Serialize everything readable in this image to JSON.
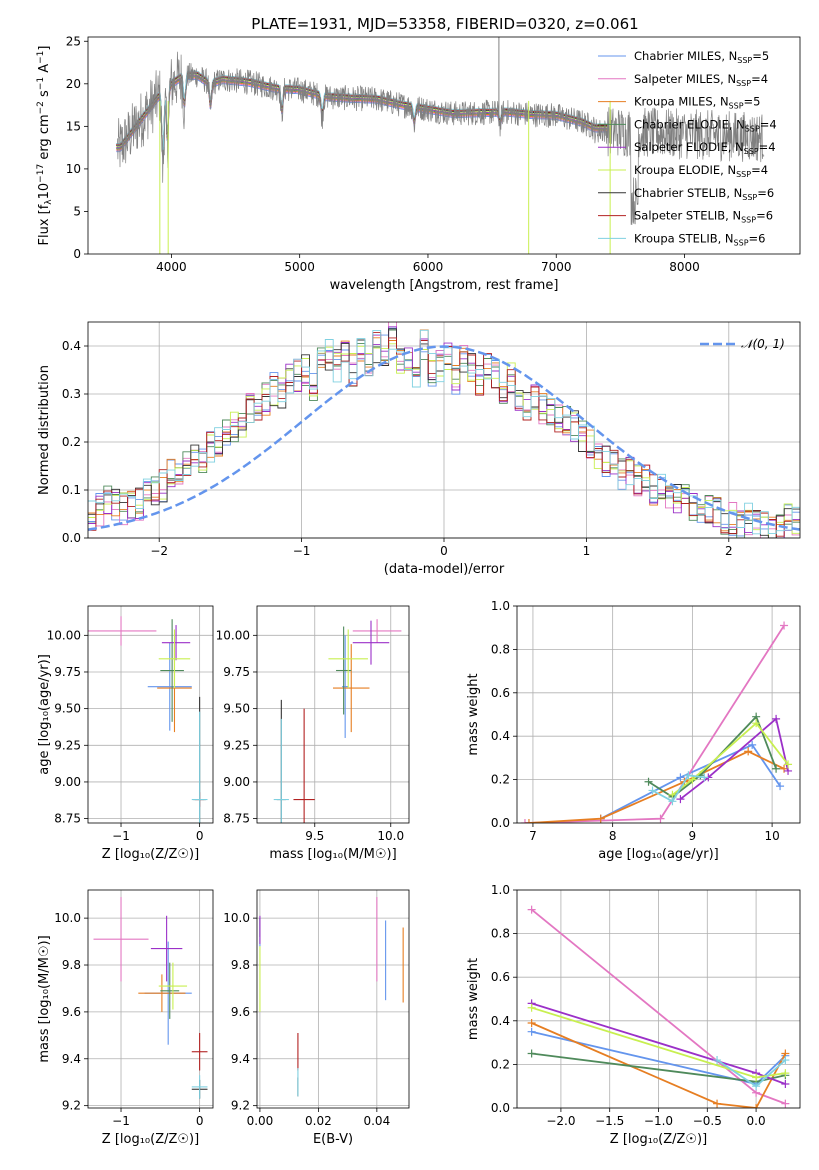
{
  "figure": {
    "title": "PLATE=1931, MJD=53358, FIBERID=0320, z=0.061"
  },
  "series_legend": [
    {
      "label": "Chabrier MILES, N",
      "sub": "SSP",
      "suffix": "=5",
      "color": "#6495ed"
    },
    {
      "label": "Salpeter MILES, N",
      "sub": "SSP",
      "suffix": "=4",
      "color": "#e377c2"
    },
    {
      "label": "Kroupa MILES, N",
      "sub": "SSP",
      "suffix": "=5",
      "color": "#e67e22"
    },
    {
      "label": "Chabrier ELODIE, N",
      "sub": "SSP",
      "suffix": "=4",
      "color": "#4f8a5b"
    },
    {
      "label": "Salpeter ELODIE, N",
      "sub": "SSP",
      "suffix": "=4",
      "color": "#9b30c8"
    },
    {
      "label": "Kroupa ELODIE, N",
      "sub": "SSP",
      "suffix": "=4",
      "color": "#c8ef50"
    },
    {
      "label": "Chabrier STELIB, N",
      "sub": "SSP",
      "suffix": "=6",
      "color": "#333333"
    },
    {
      "label": "Salpeter STELIB, N",
      "sub": "SSP",
      "suffix": "=6",
      "color": "#b22222"
    },
    {
      "label": "Kroupa STELIB, N",
      "sub": "SSP",
      "suffix": "=6",
      "color": "#7fd0e0"
    }
  ],
  "chart_data": [
    {
      "id": "spectrum",
      "type": "line",
      "xlabel": "wavelength [Angstrom, rest frame]",
      "ylabel_parts": {
        "a": "Flux [f",
        "sub": "λ",
        "b": "10",
        "sup1": "−17",
        "c": " erg cm",
        "sup2": "−2",
        "d": " s",
        "sup3": "−1",
        "e": " A",
        "sup4": "−1",
        "f": "]"
      },
      "xlim": [
        3350,
        8900
      ],
      "ylim": [
        0,
        25.5
      ],
      "xticks": [
        4000,
        5000,
        6000,
        7000,
        8000
      ],
      "yticks": [
        0,
        5,
        10,
        15,
        20,
        25
      ],
      "grid": false,
      "legend_position": "top-right",
      "data_color": "#808080",
      "continuum": {
        "x": [
          3600,
          3700,
          3800,
          3900,
          4000,
          4100,
          4200,
          4300,
          4400,
          4600,
          4800,
          5000,
          5200,
          5400,
          5600,
          5800,
          6000,
          6200,
          6400,
          6600,
          6800,
          7000,
          7200,
          7300
        ],
        "y": [
          12.5,
          14.5,
          16.5,
          18.5,
          20.0,
          21.0,
          21.0,
          20.0,
          20.5,
          20.2,
          19.5,
          19.3,
          18.5,
          18.3,
          18.2,
          17.5,
          17.0,
          16.5,
          16.6,
          16.7,
          16.4,
          16.3,
          15.5,
          14.8
        ]
      },
      "absorption_lines": [
        {
          "x": 3934,
          "depth": 9.0
        },
        {
          "x": 3969,
          "depth": 7.0
        },
        {
          "x": 4102,
          "depth": 4.0
        },
        {
          "x": 4305,
          "depth": 3.0
        },
        {
          "x": 4861,
          "depth": 3.0
        },
        {
          "x": 5175,
          "depth": 2.5
        },
        {
          "x": 5893,
          "depth": 2.0
        },
        {
          "x": 6563,
          "depth": 1.5
        }
      ]
    },
    {
      "id": "residuals",
      "type": "histogram",
      "xlabel": "(data-model)/error",
      "ylabel": "Normed distribution",
      "xlim": [
        -2.5,
        2.5
      ],
      "ylim": [
        0,
        0.45
      ],
      "xticks": [
        -2,
        -1,
        0,
        1,
        2
      ],
      "yticks": [
        0.0,
        0.1,
        0.2,
        0.3,
        0.4
      ],
      "grid": true,
      "legend_position": "top-right",
      "gaussian_label": "𝒩(0, 1)",
      "gaussian_color": "#6495ed",
      "bin_width": 0.1,
      "reference_counts": [
        0.05,
        0.06,
        0.08,
        0.07,
        0.06,
        0.07,
        0.07,
        0.09,
        0.1,
        0.11,
        0.14,
        0.12,
        0.15,
        0.16,
        0.17,
        0.19,
        0.2,
        0.22,
        0.23,
        0.24,
        0.27,
        0.26,
        0.29,
        0.31,
        0.3,
        0.33,
        0.34,
        0.35,
        0.32,
        0.37,
        0.38,
        0.36,
        0.38,
        0.35,
        0.39,
        0.37,
        0.4,
        0.39,
        0.42,
        0.36,
        0.38,
        0.34,
        0.4,
        0.35,
        0.36,
        0.38,
        0.33,
        0.37,
        0.36,
        0.33,
        0.35,
        0.34,
        0.31,
        0.33,
        0.3,
        0.28,
        0.3,
        0.27,
        0.26,
        0.25,
        0.24,
        0.23,
        0.21,
        0.2,
        0.18,
        0.16,
        0.15,
        0.13,
        0.14,
        0.12,
        0.12,
        0.1,
        0.11,
        0.09,
        0.08,
        0.08,
        0.07,
        0.06,
        0.06,
        0.05,
        0.04,
        0.04,
        0.03,
        0.04,
        0.03,
        0.03,
        0.02,
        0.03,
        0.04,
        0.03
      ]
    },
    {
      "id": "age-vs-z",
      "type": "scatter",
      "xlabel": "Z [log₁₀(Z/Z☉)]",
      "ylabel": "age  [log₁₀(age/yr)]",
      "xlim": [
        -1.42,
        0.17
      ],
      "ylim": [
        8.72,
        10.2
      ],
      "xticks": [
        -1,
        0
      ],
      "yticks": [
        8.75,
        9.0,
        9.25,
        9.5,
        9.75,
        10.0
      ],
      "grid": true,
      "points": [
        {
          "series": 0,
          "x": -0.38,
          "y": 9.65,
          "xerr": 0.28,
          "yerr": 0.3
        },
        {
          "series": 1,
          "x": -1.0,
          "y": 10.03,
          "xerr": 0.45,
          "yerr": 0.1
        },
        {
          "series": 2,
          "x": -0.32,
          "y": 9.64,
          "xerr": 0.22,
          "yerr": 0.3
        },
        {
          "series": 3,
          "x": -0.35,
          "y": 9.76,
          "xerr": 0.15,
          "yerr": 0.35
        },
        {
          "series": 4,
          "x": -0.3,
          "y": 9.95,
          "xerr": 0.18,
          "yerr": 0.12
        },
        {
          "series": 5,
          "x": -0.32,
          "y": 9.84,
          "xerr": 0.2,
          "yerr": 0.2
        },
        {
          "series": 6,
          "x": 0.0,
          "y": 8.88,
          "xerr": 0.08,
          "yerr": 0.7
        },
        {
          "series": 7,
          "x": 0.0,
          "y": 8.88,
          "xerr": 0.06,
          "yerr": 0.05
        },
        {
          "series": 8,
          "x": 0.0,
          "y": 8.88,
          "xerr": 0.1,
          "yerr": 0.6
        }
      ]
    },
    {
      "id": "age-vs-mass",
      "type": "scatter",
      "xlabel": "mass [log₁₀(M/M☉)]",
      "ylabel": "",
      "xlim": [
        9.12,
        10.12
      ],
      "ylim": [
        8.72,
        10.2
      ],
      "xticks": [
        9.5,
        10.0
      ],
      "yticks": [
        8.75,
        9.0,
        9.25,
        9.5,
        9.75,
        10.0
      ],
      "grid": true,
      "points": [
        {
          "series": 0,
          "x": 9.7,
          "y": 9.65,
          "xerr": 0.02,
          "yerr": 0.35
        },
        {
          "series": 1,
          "x": 9.91,
          "y": 10.03,
          "xerr": 0.16,
          "yerr": 0.08
        },
        {
          "series": 2,
          "x": 9.74,
          "y": 9.64,
          "xerr": 0.12,
          "yerr": 0.3
        },
        {
          "series": 3,
          "x": 9.69,
          "y": 9.76,
          "xerr": 0.05,
          "yerr": 0.3
        },
        {
          "series": 4,
          "x": 9.87,
          "y": 9.95,
          "xerr": 0.12,
          "yerr": 0.15
        },
        {
          "series": 5,
          "x": 9.72,
          "y": 9.84,
          "xerr": 0.13,
          "yerr": 0.2
        },
        {
          "series": 6,
          "x": 9.28,
          "y": 8.88,
          "xerr": 0.03,
          "yerr": 0.68
        },
        {
          "series": 7,
          "x": 9.43,
          "y": 8.88,
          "xerr": 0.07,
          "yerr": 0.62
        },
        {
          "series": 8,
          "x": 9.28,
          "y": 8.88,
          "xerr": 0.05,
          "yerr": 0.55
        }
      ]
    },
    {
      "id": "mass-weight-vs-age",
      "type": "line",
      "xlabel": "age  [log₁₀(age/yr)]",
      "ylabel": "mass weight",
      "xlim": [
        6.8,
        10.35
      ],
      "ylim": [
        0,
        1.0
      ],
      "xticks": [
        7,
        8,
        9,
        10
      ],
      "yticks": [
        0.0,
        0.2,
        0.4,
        0.6,
        0.8,
        1.0
      ],
      "grid": true,
      "series": [
        {
          "series": 0,
          "x": [
            7.85,
            8.85,
            9.75,
            10.1
          ],
          "y": [
            0.02,
            0.21,
            0.36,
            0.17
          ]
        },
        {
          "series": 1,
          "x": [
            6.9,
            8.6,
            10.15
          ],
          "y": [
            0.0,
            0.02,
            0.91
          ]
        },
        {
          "series": 2,
          "x": [
            6.95,
            7.85,
            8.9,
            9.7,
            10.15
          ],
          "y": [
            0.0,
            0.02,
            0.19,
            0.33,
            0.25
          ]
        },
        {
          "series": 3,
          "x": [
            8.45,
            8.75,
            9.1,
            9.8,
            10.05
          ],
          "y": [
            0.19,
            0.12,
            0.22,
            0.49,
            0.25
          ]
        },
        {
          "series": 4,
          "x": [
            8.85,
            9.2,
            10.05,
            10.2
          ],
          "y": [
            0.11,
            0.21,
            0.48,
            0.24
          ]
        },
        {
          "series": 5,
          "x": [
            8.75,
            9.0,
            9.8,
            10.2
          ],
          "y": [
            0.13,
            0.2,
            0.46,
            0.27
          ]
        },
        {
          "series": 8,
          "x": [
            8.5,
            8.75,
            8.95,
            9.15
          ],
          "y": [
            0.15,
            0.1,
            0.22,
            0.21
          ]
        }
      ]
    },
    {
      "id": "mass-vs-z",
      "type": "scatter",
      "xlabel": "Z [log₁₀(Z/Z☉)]",
      "ylabel": "mass [log₁₀(M/M☉)]",
      "xlim": [
        -1.42,
        0.17
      ],
      "ylim": [
        9.19,
        10.12
      ],
      "xticks": [
        -1,
        0
      ],
      "yticks": [
        9.2,
        9.4,
        9.6,
        9.8,
        10.0
      ],
      "grid": true,
      "points": [
        {
          "series": 0,
          "x": -0.4,
          "y": 9.68,
          "xerr": 0.3,
          "yerr": 0.22
        },
        {
          "series": 1,
          "x": -1.0,
          "y": 9.91,
          "xerr": 0.35,
          "yerr": 0.18
        },
        {
          "series": 2,
          "x": -0.48,
          "y": 9.68,
          "xerr": 0.3,
          "yerr": 0.08
        },
        {
          "series": 3,
          "x": -0.38,
          "y": 9.69,
          "xerr": 0.12,
          "yerr": 0.12
        },
        {
          "series": 4,
          "x": -0.42,
          "y": 9.87,
          "xerr": 0.2,
          "yerr": 0.14
        },
        {
          "series": 5,
          "x": -0.34,
          "y": 9.71,
          "xerr": 0.18,
          "yerr": 0.1
        },
        {
          "series": 6,
          "x": 0.0,
          "y": 9.27,
          "xerr": 0.1,
          "yerr": 0.04
        },
        {
          "series": 7,
          "x": 0.0,
          "y": 9.43,
          "xerr": 0.1,
          "yerr": 0.08
        },
        {
          "series": 8,
          "x": 0.0,
          "y": 9.28,
          "xerr": 0.1,
          "yerr": 0.05
        }
      ]
    },
    {
      "id": "mass-vs-ebv",
      "type": "scatter",
      "xlabel": "E(B-V)",
      "ylabel": "",
      "xlim": [
        -0.001,
        0.051
      ],
      "ylim": [
        9.19,
        10.12
      ],
      "xticks": [
        0.0,
        0.02,
        0.04
      ],
      "yticks": [
        9.2,
        9.4,
        9.6,
        9.8,
        10.0
      ],
      "grid": true,
      "points": [
        {
          "series": 0,
          "x": 0.0,
          "y": 9.94,
          "xerr": 0,
          "yerr": 0.06
        },
        {
          "series": 1,
          "x": 0.04,
          "y": 9.91,
          "xerr": 0,
          "yerr": 0.18
        },
        {
          "series": 2,
          "x": 0.049,
          "y": 9.8,
          "xerr": 0,
          "yerr": 0.16
        },
        {
          "series": 3,
          "x": 0.0,
          "y": 9.96,
          "xerr": 0,
          "yerr": 0.04
        },
        {
          "series": 4,
          "x": 0.0,
          "y": 9.95,
          "xerr": 0,
          "yerr": 0.06
        },
        {
          "series": 5,
          "x": 0.0,
          "y": 9.74,
          "xerr": 0,
          "yerr": 0.14
        },
        {
          "series": 6,
          "x": 0.013,
          "y": 9.28,
          "xerr": 0,
          "yerr": 0.04
        },
        {
          "series": 7,
          "x": 0.013,
          "y": 9.43,
          "xerr": 0,
          "yerr": 0.08
        },
        {
          "series": 8,
          "x": 0.013,
          "y": 9.3,
          "xerr": 0,
          "yerr": 0.06
        },
        {
          "series": 0,
          "x": 0.043,
          "y": 9.82,
          "xerr": 0,
          "yerr": 0.17
        }
      ]
    },
    {
      "id": "mass-weight-vs-z",
      "type": "line",
      "xlabel": "Z [log₁₀(Z/Z☉)]",
      "ylabel": "mass weight",
      "xlim": [
        -2.45,
        0.45
      ],
      "ylim": [
        0,
        1.0
      ],
      "xticks": [
        -2.0,
        -1.5,
        -1.0,
        -0.5,
        0.0
      ],
      "yticks": [
        0.0,
        0.2,
        0.4,
        0.6,
        0.8,
        1.0
      ],
      "grid": true,
      "series": [
        {
          "series": 0,
          "x": [
            -2.3,
            0.0,
            0.3
          ],
          "y": [
            0.35,
            0.11,
            0.24
          ]
        },
        {
          "series": 1,
          "x": [
            -2.3,
            0.0,
            0.3
          ],
          "y": [
            0.91,
            0.07,
            0.02
          ]
        },
        {
          "series": 2,
          "x": [
            -2.3,
            -0.4,
            0.0,
            0.3
          ],
          "y": [
            0.39,
            0.02,
            0.0,
            0.25
          ]
        },
        {
          "series": 3,
          "x": [
            -2.3,
            0.0,
            0.3
          ],
          "y": [
            0.25,
            0.12,
            0.15
          ]
        },
        {
          "series": 4,
          "x": [
            -2.3,
            0.0,
            0.3
          ],
          "y": [
            0.48,
            0.16,
            0.11
          ]
        },
        {
          "series": 5,
          "x": [
            -2.3,
            0.0,
            0.3
          ],
          "y": [
            0.46,
            0.14,
            0.16
          ]
        },
        {
          "series": 8,
          "x": [
            -0.4,
            0.0,
            0.3
          ],
          "y": [
            0.22,
            0.1,
            0.22
          ]
        }
      ]
    }
  ]
}
